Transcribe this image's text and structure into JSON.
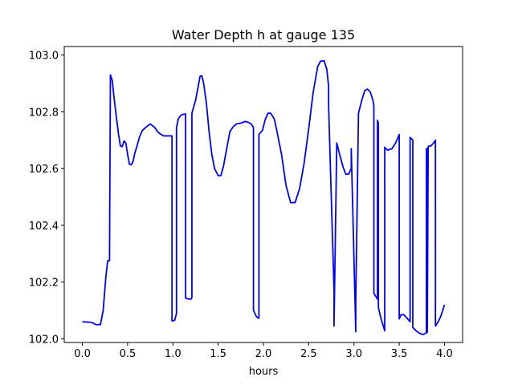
{
  "chart_data": {
    "type": "line",
    "title": "Water Depth h at gauge 135",
    "xlabel": "hours",
    "ylabel": "",
    "xlim": [
      -0.2,
      4.2
    ],
    "ylim": [
      101.987,
      103.03
    ],
    "xticks": [
      0.0,
      0.5,
      1.0,
      1.5,
      2.0,
      2.5,
      3.0,
      3.5,
      4.0
    ],
    "xtick_labels": [
      "0.0",
      "0.5",
      "1.0",
      "1.5",
      "2.0",
      "2.5",
      "3.0",
      "3.5",
      "4.0"
    ],
    "yticks": [
      102.0,
      102.2,
      102.4,
      102.6,
      102.8,
      103.0
    ],
    "ytick_labels": [
      "102.0",
      "102.2",
      "102.4",
      "102.6",
      "102.8",
      "103.0"
    ],
    "grid": false,
    "legend": "none",
    "series": [
      {
        "color": "#0000ff",
        "x": [
          0.0,
          0.1,
          0.15,
          0.2,
          0.23,
          0.26,
          0.28,
          0.3,
          0.31,
          0.31,
          0.33,
          0.35,
          0.38,
          0.4,
          0.42,
          0.44,
          0.46,
          0.48,
          0.5,
          0.52,
          0.54,
          0.56,
          0.58,
          0.6,
          0.63,
          0.66,
          0.7,
          0.75,
          0.8,
          0.83,
          0.86,
          0.9,
          0.93,
          0.96,
          0.99,
          0.99,
          1.02,
          1.04,
          1.04,
          1.06,
          1.08,
          1.1,
          1.13,
          1.14,
          1.14,
          1.18,
          1.2,
          1.21,
          1.21,
          1.25,
          1.28,
          1.3,
          1.32,
          1.34,
          1.37,
          1.4,
          1.43,
          1.46,
          1.5,
          1.53,
          1.56,
          1.6,
          1.63,
          1.66,
          1.7,
          1.75,
          1.8,
          1.84,
          1.87,
          1.89,
          1.89,
          1.92,
          1.94,
          1.95,
          1.95,
          1.99,
          2.02,
          2.05,
          2.08,
          2.12,
          2.15,
          2.2,
          2.25,
          2.3,
          2.35,
          2.4,
          2.45,
          2.5,
          2.55,
          2.6,
          2.63,
          2.67,
          2.7,
          2.72,
          2.72,
          2.78,
          2.78,
          2.81,
          2.85,
          2.88,
          2.91,
          2.94,
          2.97,
          2.97,
          3.02,
          3.02,
          3.05,
          3.09,
          3.12,
          3.15,
          3.18,
          3.21,
          3.22,
          3.22,
          3.26,
          3.26,
          3.27,
          3.27,
          3.3,
          3.34,
          3.34,
          3.37,
          3.42,
          3.46,
          3.5,
          3.5,
          3.52,
          3.55,
          3.58,
          3.62,
          3.62,
          3.65,
          3.65,
          3.68,
          3.72,
          3.76,
          3.8,
          3.8,
          3.81,
          3.81,
          3.82,
          3.82,
          3.85,
          3.88,
          3.9,
          3.9,
          3.93,
          3.96,
          4.0
        ],
        "values": [
          102.06,
          102.058,
          102.05,
          102.05,
          102.1,
          102.22,
          102.275,
          102.275,
          102.93,
          102.93,
          102.91,
          102.85,
          102.77,
          102.72,
          102.68,
          102.677,
          102.697,
          102.69,
          102.65,
          102.615,
          102.613,
          102.625,
          102.655,
          102.675,
          102.71,
          102.733,
          102.745,
          102.757,
          102.745,
          102.73,
          102.722,
          102.715,
          102.715,
          102.715,
          102.715,
          102.063,
          102.065,
          102.09,
          102.745,
          102.775,
          102.785,
          102.79,
          102.792,
          102.792,
          102.143,
          102.14,
          102.14,
          102.145,
          102.795,
          102.84,
          102.89,
          102.925,
          102.927,
          102.9,
          102.83,
          102.73,
          102.65,
          102.6,
          102.575,
          102.575,
          102.61,
          102.68,
          102.73,
          102.745,
          102.757,
          102.76,
          102.766,
          102.762,
          102.755,
          102.745,
          102.1,
          102.08,
          102.073,
          102.073,
          102.72,
          102.735,
          102.773,
          102.795,
          102.795,
          102.775,
          102.73,
          102.65,
          102.54,
          102.48,
          102.48,
          102.53,
          102.62,
          102.74,
          102.87,
          102.96,
          102.978,
          102.98,
          102.95,
          102.89,
          102.82,
          102.17,
          102.045,
          102.69,
          102.64,
          102.605,
          102.58,
          102.58,
          102.6,
          102.67,
          102.025,
          102.13,
          102.795,
          102.845,
          102.875,
          102.88,
          102.87,
          102.84,
          102.82,
          102.16,
          102.14,
          102.77,
          102.76,
          102.11,
          102.07,
          102.028,
          102.675,
          102.665,
          102.67,
          102.69,
          102.72,
          102.07,
          102.085,
          102.085,
          102.075,
          102.06,
          102.71,
          102.7,
          102.04,
          102.03,
          102.02,
          102.015,
          102.02,
          102.67,
          102.67,
          102.023,
          102.675,
          102.678,
          102.68,
          102.69,
          102.7,
          102.045,
          102.06,
          102.08,
          102.12
        ]
      }
    ]
  }
}
